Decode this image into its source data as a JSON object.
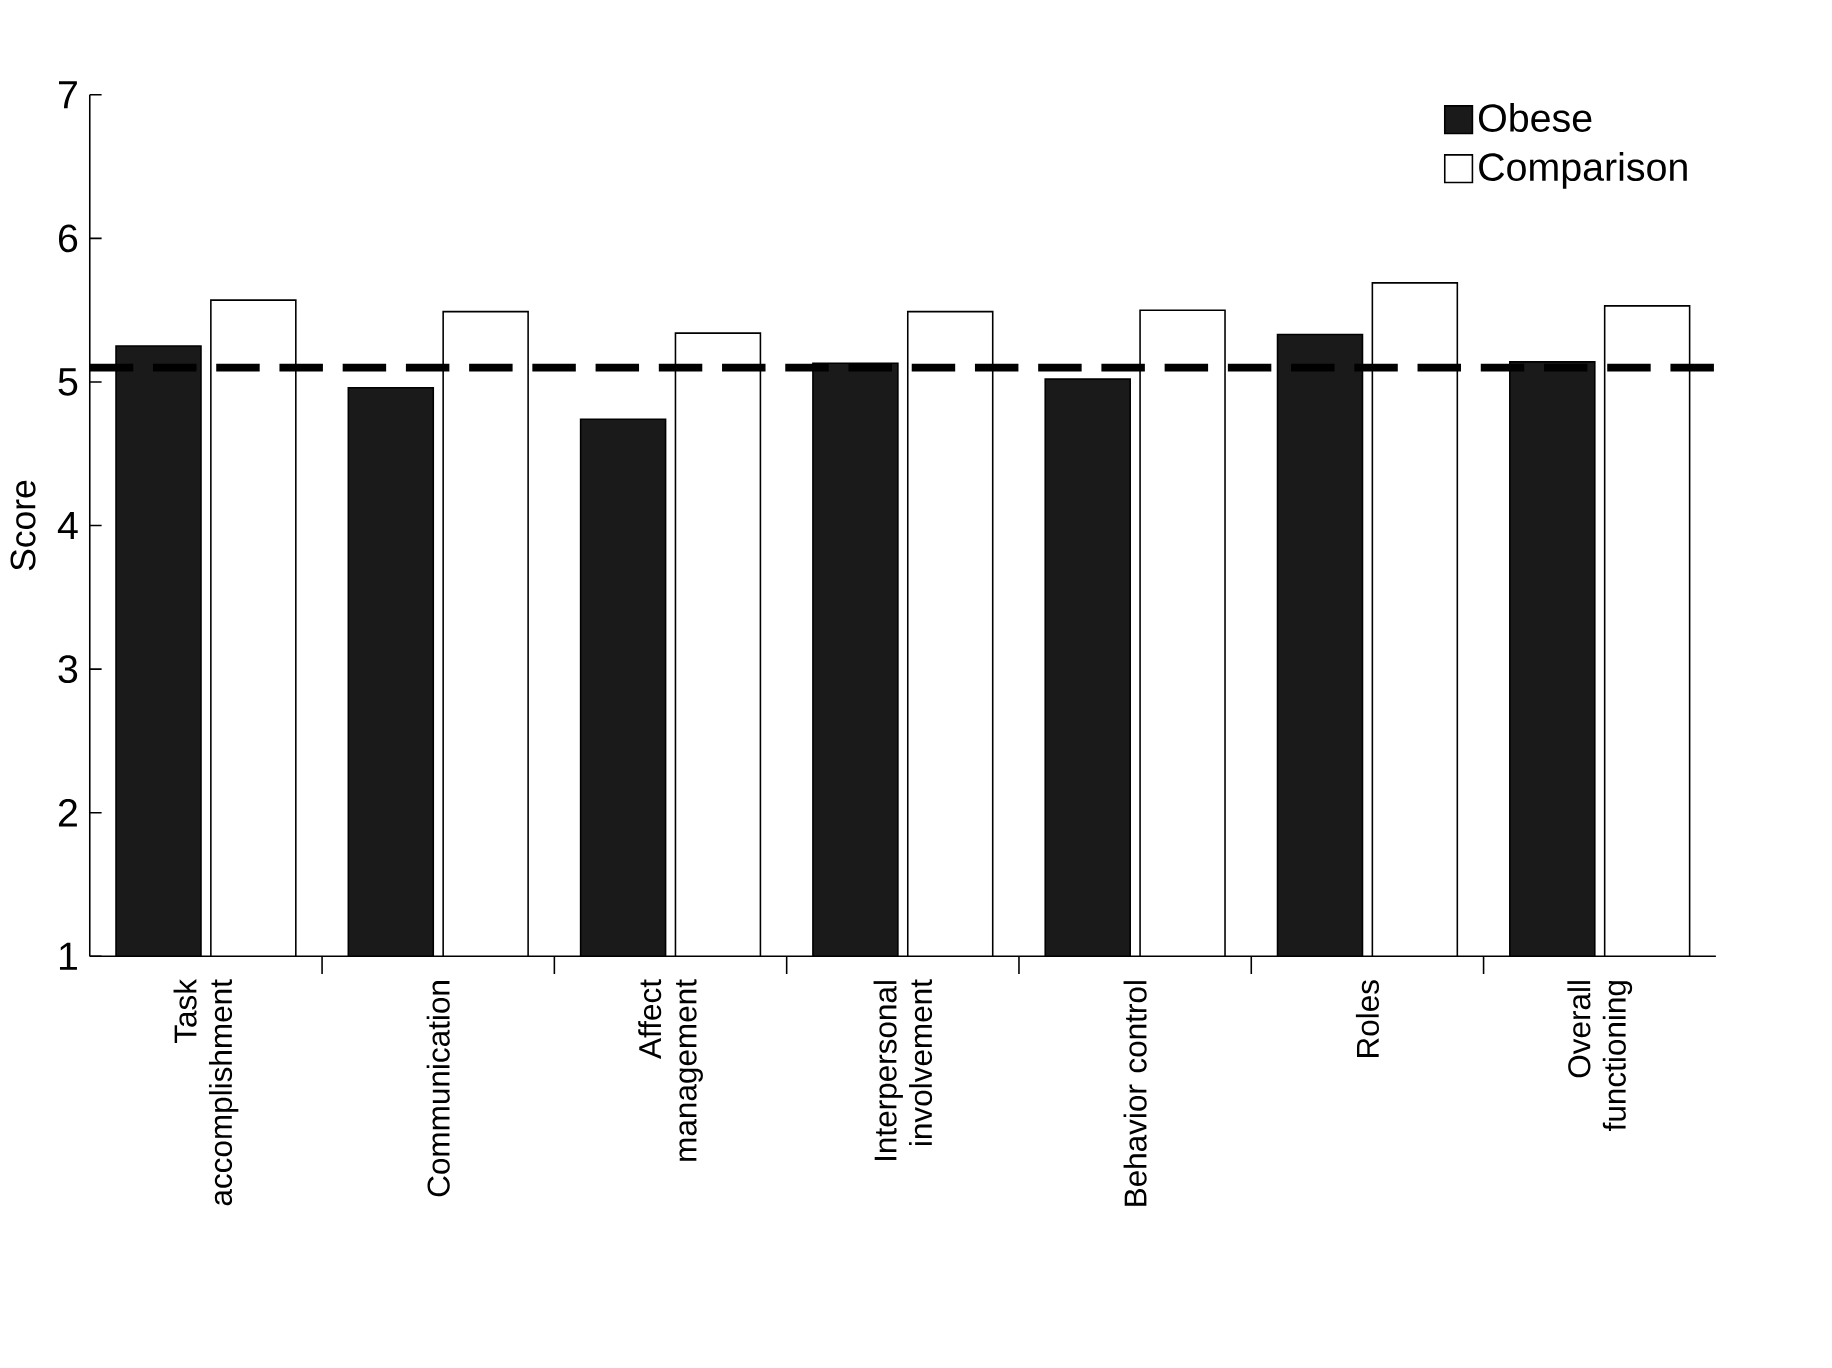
{
  "chart_data": {
    "type": "bar",
    "ylabel": "Score",
    "categories": [
      "Task accomplishment",
      "Communication",
      "Affect management",
      "Interpersonal involvement",
      "Behavior control",
      "Roles",
      "Overall functioning"
    ],
    "series": [
      {
        "name": "Obese",
        "color": "#1a1a1a",
        "values": [
          5.25,
          4.96,
          4.74,
          5.13,
          5.02,
          5.33,
          5.14
        ]
      },
      {
        "name": "Comparison",
        "color": "#ffffff",
        "values": [
          5.57,
          5.49,
          5.34,
          5.49,
          5.5,
          5.69,
          5.53
        ]
      }
    ],
    "ylim": [
      1,
      7
    ],
    "yticks": [
      1,
      2,
      3,
      4,
      5,
      6,
      7
    ],
    "ref_lines": [
      {
        "axis": "y",
        "value": 5.1,
        "color": "#000000",
        "line_style": "dashed"
      }
    ],
    "legend": "top right"
  }
}
